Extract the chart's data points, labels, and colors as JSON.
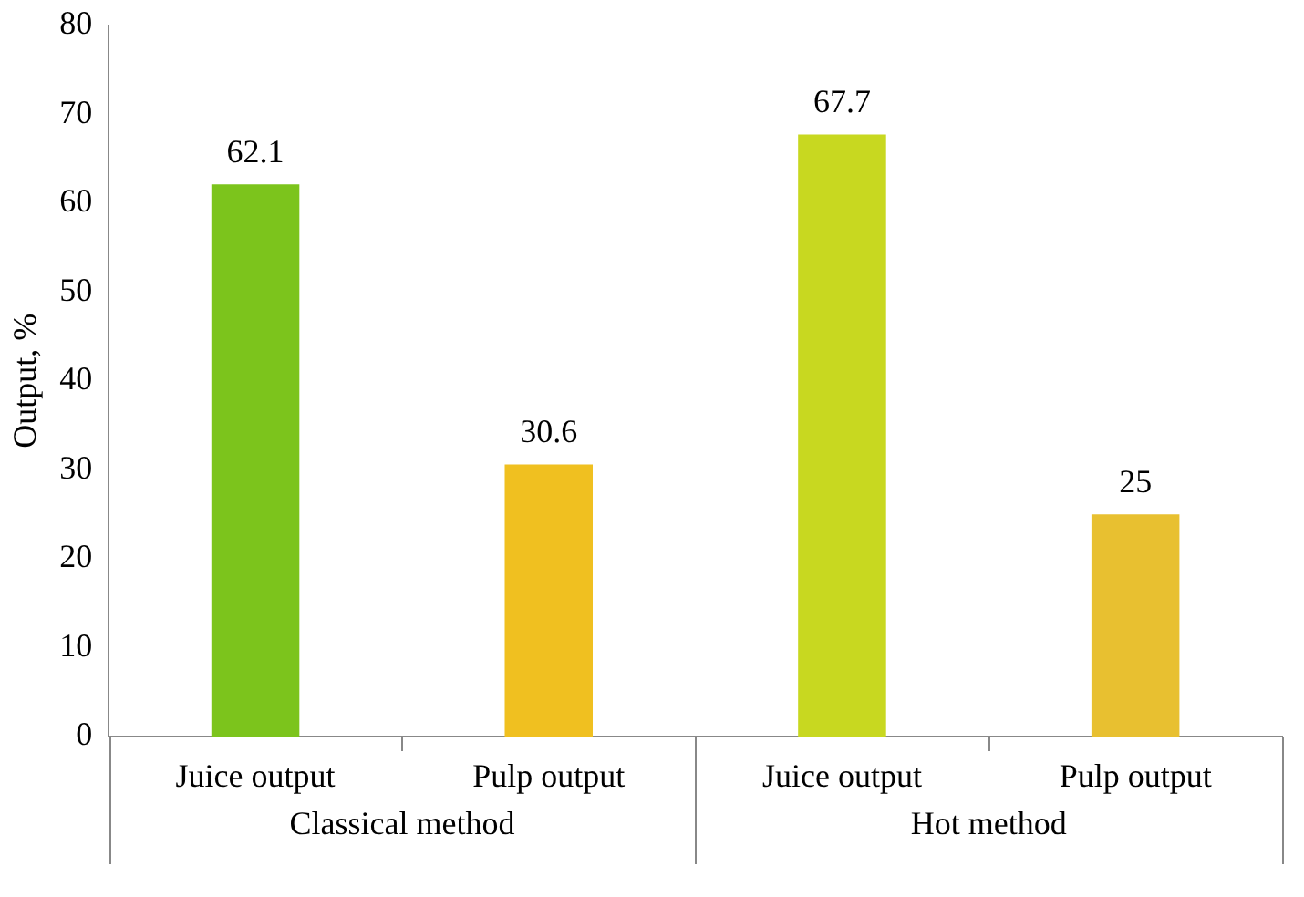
{
  "chart_data": {
    "type": "bar",
    "ylabel": "Output, %",
    "categories": [
      "Juice output",
      "Pulp output",
      "Juice output",
      "Pulp output"
    ],
    "values": [
      62.1,
      30.6,
      67.7,
      25
    ],
    "colors": [
      "#7cc41c",
      "#f0c020",
      "#c8d820",
      "#e8c030"
    ],
    "ylim": [
      0,
      80
    ],
    "yticks": [
      0,
      10,
      20,
      30,
      40,
      50,
      60,
      70,
      80
    ],
    "grid": false,
    "legend": false,
    "data_labels": true,
    "annotations": [
      "Classical method",
      "Hot method"
    ]
  }
}
